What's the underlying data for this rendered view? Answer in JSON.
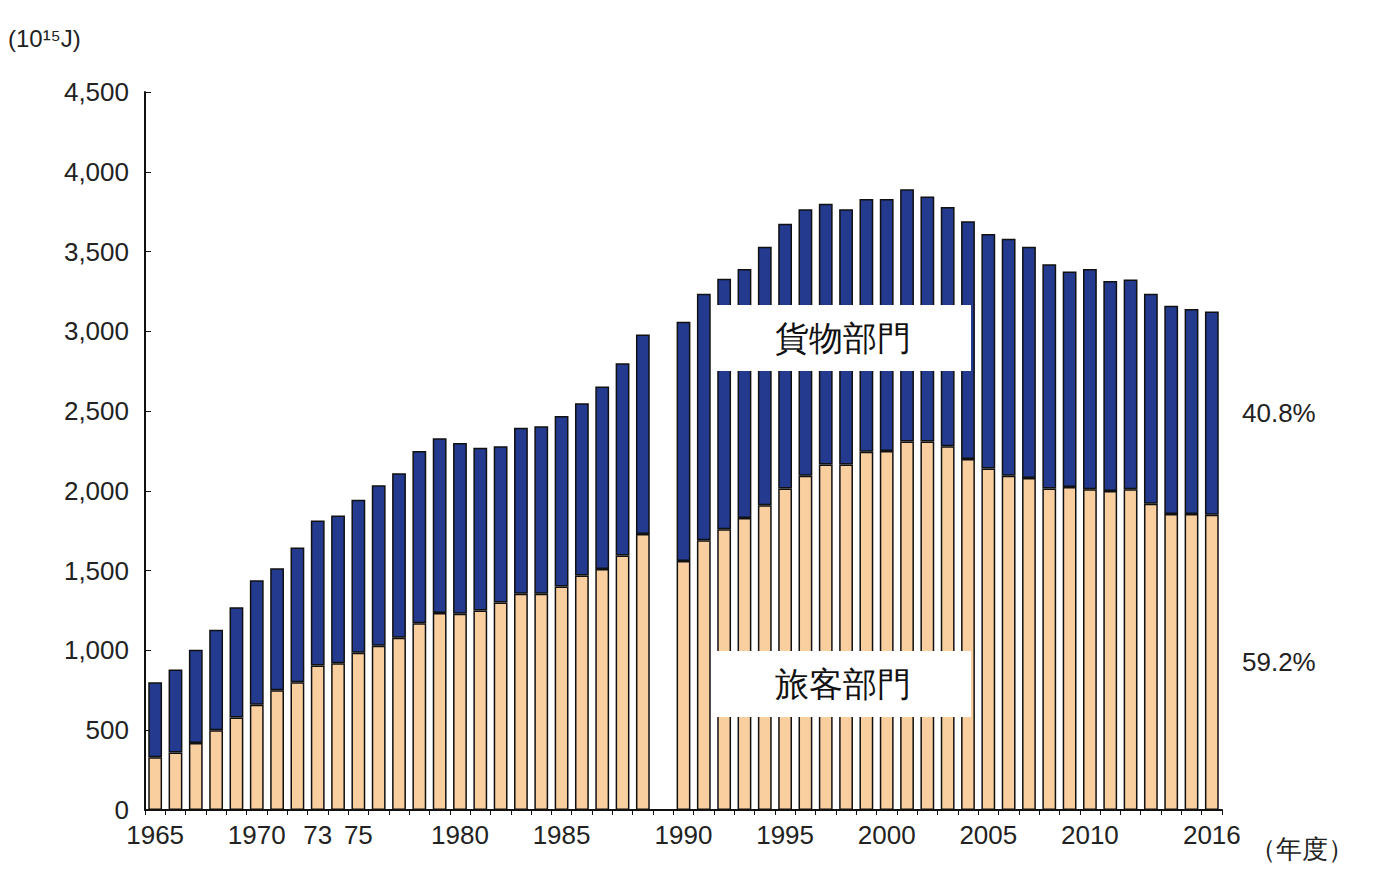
{
  "chart_data": {
    "type": "bar",
    "stacked": true,
    "y_label": "(10¹⁵J)",
    "x_label": "（年度）",
    "categories": [
      "1965",
      null,
      null,
      null,
      null,
      "1970",
      null,
      null,
      "73",
      null,
      "75",
      null,
      null,
      null,
      null,
      "1980",
      null,
      null,
      null,
      null,
      "1985",
      null,
      null,
      null,
      null,
      null,
      "1990",
      null,
      null,
      null,
      null,
      "1995",
      null,
      null,
      null,
      null,
      "2000",
      null,
      null,
      null,
      null,
      "2005",
      null,
      null,
      null,
      null,
      "2010",
      null,
      null,
      null,
      null,
      null,
      "2016"
    ],
    "series": [
      {
        "name": "旅客部門",
        "color": "#f9cfa0",
        "values": [
          330,
          360,
          420,
          500,
          580,
          660,
          750,
          800,
          905,
          920,
          985,
          1030,
          1080,
          1170,
          1235,
          1230,
          1250,
          1300,
          1355,
          1355,
          1400,
          1470,
          1510,
          1595,
          1730,
          null,
          1560,
          1690,
          1760,
          1830,
          1910,
          2015,
          2095,
          2165,
          2165,
          2245,
          2250,
          2310,
          2310,
          2280,
          2200,
          2140,
          2095,
          2080,
          2015,
          2025,
          2010,
          2000,
          2010,
          1920,
          1855,
          1855,
          1850
        ]
      },
      {
        "name": "貨物部門",
        "color": "#233a8f",
        "values": [
          470,
          520,
          585,
          630,
          690,
          780,
          765,
          845,
          910,
          925,
          960,
          1005,
          1030,
          1080,
          1095,
          1070,
          1020,
          980,
          1040,
          1050,
          1070,
          1080,
          1145,
          1205,
          1250,
          null,
          1500,
          1545,
          1570,
          1560,
          1620,
          1660,
          1670,
          1635,
          1600,
          1585,
          1580,
          1580,
          1535,
          1500,
          1490,
          1470,
          1485,
          1450,
          1405,
          1350,
          1380,
          1315,
          1315,
          1315,
          1305,
          1285,
          1275
        ]
      }
    ],
    "annotations": [
      {
        "text": "40.8%",
        "series": "貨物部門"
      },
      {
        "text": "59.2%",
        "series": "旅客部門"
      }
    ],
    "ylim": [
      0,
      4500
    ],
    "yticks": [
      0,
      500,
      {
        "value": 1000,
        "label": "1,000"
      },
      {
        "value": 1500,
        "label": "1,500"
      },
      {
        "value": 2000,
        "label": "2,000"
      },
      {
        "value": 2500,
        "label": "2,500"
      },
      {
        "value": 3000,
        "label": "3,000"
      },
      {
        "value": 3500,
        "label": "3,500"
      },
      {
        "value": 4000,
        "label": "4,000"
      },
      {
        "value": 4500,
        "label": "4,500"
      }
    ],
    "grid": false
  }
}
